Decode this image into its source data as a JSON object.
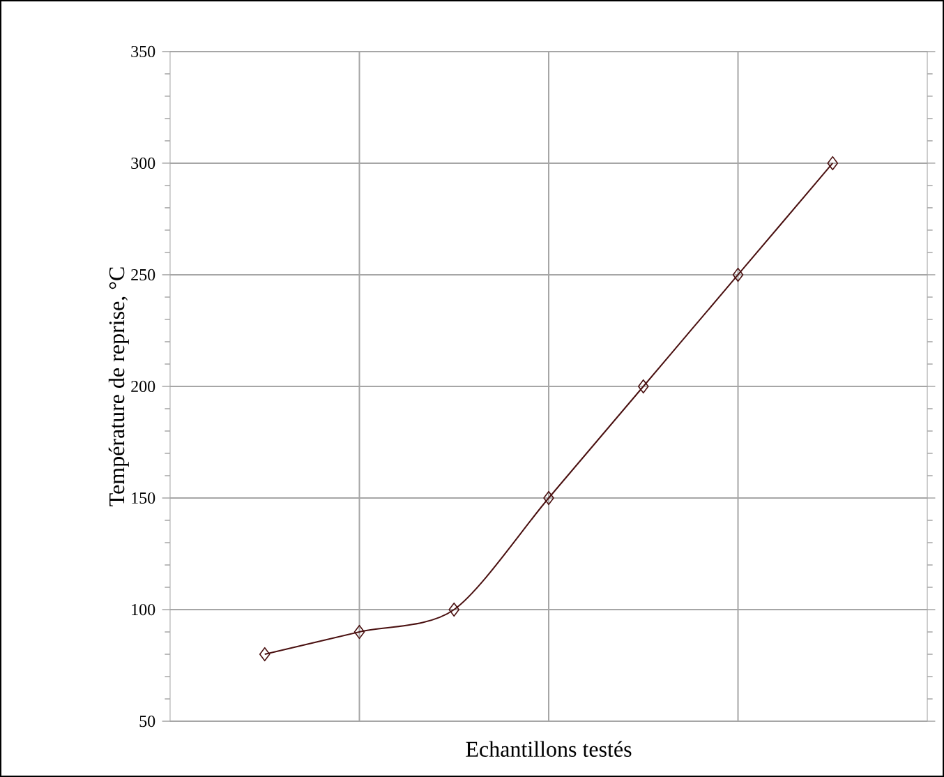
{
  "chart_data": {
    "type": "line",
    "xlabel": "Echantillons testés",
    "ylabel": "Température de reprise, °C",
    "categories": [
      null,
      null,
      null,
      null,
      null,
      null,
      null
    ],
    "series": [
      {
        "color": "#4a1010",
        "values": [
          80,
          90,
          100,
          150,
          200,
          250,
          300
        ]
      }
    ],
    "ylim": [
      50,
      350
    ],
    "yticks": [
      50,
      100,
      150,
      200,
      250,
      300,
      350
    ],
    "grid": true,
    "marker": "diamond",
    "line_style": "solid"
  }
}
